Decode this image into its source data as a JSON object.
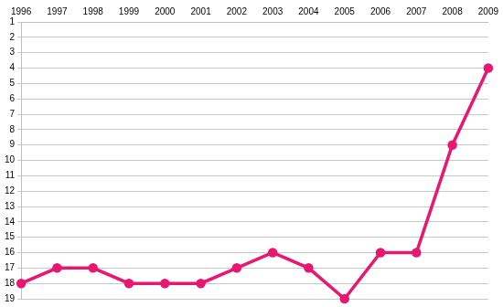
{
  "chart_data": {
    "type": "line",
    "categories": [
      "1996",
      "1997",
      "1998",
      "1999",
      "2000",
      "2001",
      "2002",
      "2003",
      "2004",
      "2005",
      "2006",
      "2007",
      "2008",
      "2009"
    ],
    "values": [
      18,
      17,
      17,
      18,
      18,
      18,
      17,
      16,
      17,
      19,
      16,
      16,
      9,
      4
    ],
    "color": "#e8176f",
    "marker": "circle",
    "ylim": [
      19,
      1
    ],
    "yticks": [
      1,
      2,
      3,
      4,
      5,
      6,
      7,
      8,
      9,
      10,
      11,
      12,
      13,
      14,
      15,
      16,
      17,
      18,
      19
    ],
    "grid": true
  }
}
